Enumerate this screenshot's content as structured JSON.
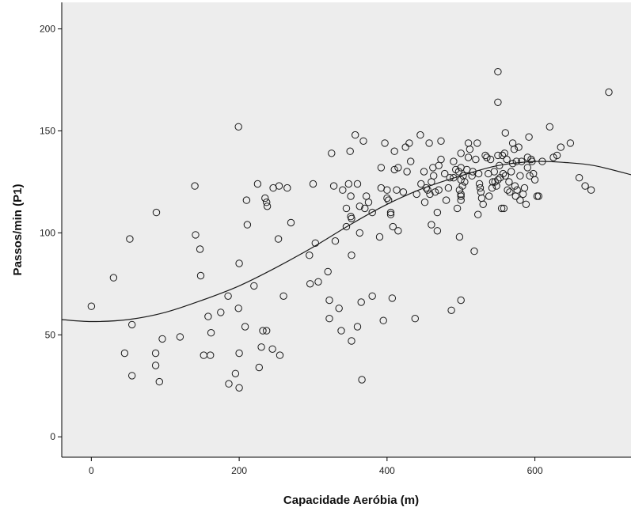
{
  "chart_data": {
    "type": "scatter",
    "xlabel": "Capacidade Aeróbia (m)",
    "ylabel": "Passos/min (P1)",
    "xlim": [
      -40,
      730
    ],
    "ylim": [
      -10,
      213
    ],
    "xticks": [
      0,
      200,
      400,
      600
    ],
    "yticks": [
      0,
      50,
      100,
      150,
      200
    ],
    "grid": false,
    "colors": {
      "background": "#ededed",
      "marker": "#1a1a1a",
      "fit_line": "#1a1a1a"
    },
    "fit": {
      "type": "polynomial-fit",
      "x": [
        -40,
        0,
        50,
        100,
        150,
        200,
        250,
        300,
        350,
        400,
        450,
        500,
        550,
        600,
        640,
        680,
        730
      ],
      "y": [
        57.5,
        56.5,
        57.5,
        61,
        67,
        74,
        83,
        93,
        104,
        114,
        122,
        128,
        133,
        135,
        134.5,
        133,
        128.5
      ]
    },
    "points": [
      [
        0,
        64
      ],
      [
        30,
        78
      ],
      [
        45,
        41
      ],
      [
        52,
        97
      ],
      [
        55,
        55
      ],
      [
        55,
        30
      ],
      [
        88,
        110
      ],
      [
        87,
        41
      ],
      [
        87,
        35
      ],
      [
        92,
        27
      ],
      [
        96,
        48
      ],
      [
        120,
        49
      ],
      [
        140,
        123
      ],
      [
        141,
        99
      ],
      [
        147,
        92
      ],
      [
        148,
        79
      ],
      [
        152,
        40
      ],
      [
        158,
        59
      ],
      [
        161,
        40
      ],
      [
        162,
        51
      ],
      [
        175,
        61
      ],
      [
        185,
        69
      ],
      [
        186,
        26
      ],
      [
        195,
        31
      ],
      [
        199,
        152
      ],
      [
        200,
        85
      ],
      [
        199,
        63
      ],
      [
        200,
        41
      ],
      [
        200,
        24
      ],
      [
        208,
        54
      ],
      [
        210,
        116
      ],
      [
        211,
        104
      ],
      [
        220,
        74
      ],
      [
        225,
        124
      ],
      [
        227,
        34
      ],
      [
        230,
        44
      ],
      [
        232,
        52
      ],
      [
        235,
        117
      ],
      [
        237,
        115
      ],
      [
        237,
        52
      ],
      [
        238,
        113
      ],
      [
        245,
        43
      ],
      [
        246,
        122
      ],
      [
        253,
        97
      ],
      [
        254,
        123
      ],
      [
        255,
        40
      ],
      [
        260,
        69
      ],
      [
        265,
        122
      ],
      [
        270,
        105
      ],
      [
        295,
        89
      ],
      [
        296,
        75
      ],
      [
        300,
        124
      ],
      [
        303,
        95
      ],
      [
        307,
        76
      ],
      [
        320,
        81
      ],
      [
        322,
        67
      ],
      [
        322,
        58
      ],
      [
        325,
        139
      ],
      [
        328,
        123
      ],
      [
        330,
        96
      ],
      [
        335,
        63
      ],
      [
        338,
        52
      ],
      [
        340,
        121
      ],
      [
        345,
        112
      ],
      [
        345,
        103
      ],
      [
        348,
        124
      ],
      [
        350,
        140
      ],
      [
        351,
        118
      ],
      [
        351,
        108
      ],
      [
        352,
        107
      ],
      [
        352,
        89
      ],
      [
        352,
        47
      ],
      [
        357,
        148
      ],
      [
        360,
        124
      ],
      [
        360,
        54
      ],
      [
        363,
        113
      ],
      [
        363,
        100
      ],
      [
        365,
        66
      ],
      [
        366,
        28
      ],
      [
        368,
        145
      ],
      [
        370,
        112
      ],
      [
        372,
        118
      ],
      [
        375,
        115
      ],
      [
        380,
        110
      ],
      [
        380,
        69
      ],
      [
        390,
        98
      ],
      [
        392,
        132
      ],
      [
        392,
        122
      ],
      [
        395,
        57
      ],
      [
        397,
        144
      ],
      [
        400,
        121
      ],
      [
        400,
        117
      ],
      [
        402,
        116
      ],
      [
        405,
        110
      ],
      [
        405,
        109
      ],
      [
        407,
        68
      ],
      [
        408,
        103
      ],
      [
        410,
        140
      ],
      [
        410,
        131
      ],
      [
        413,
        121
      ],
      [
        415,
        132
      ],
      [
        415,
        101
      ],
      [
        422,
        120
      ],
      [
        425,
        142
      ],
      [
        427,
        130
      ],
      [
        430,
        144
      ],
      [
        432,
        135
      ],
      [
        438,
        58
      ],
      [
        440,
        119
      ],
      [
        445,
        148
      ],
      [
        446,
        124
      ],
      [
        450,
        130
      ],
      [
        451,
        115
      ],
      [
        453,
        122
      ],
      [
        455,
        121
      ],
      [
        457,
        144
      ],
      [
        458,
        119
      ],
      [
        460,
        125
      ],
      [
        460,
        104
      ],
      [
        462,
        132
      ],
      [
        463,
        128
      ],
      [
        465,
        120
      ],
      [
        468,
        110
      ],
      [
        468,
        101
      ],
      [
        470,
        133
      ],
      [
        470,
        121
      ],
      [
        473,
        136
      ],
      [
        473,
        145
      ],
      [
        478,
        129
      ],
      [
        480,
        116
      ],
      [
        483,
        122
      ],
      [
        485,
        127
      ],
      [
        487,
        62
      ],
      [
        490,
        127
      ],
      [
        490,
        135
      ],
      [
        493,
        131
      ],
      [
        495,
        112
      ],
      [
        497,
        130
      ],
      [
        498,
        121
      ],
      [
        498,
        98
      ],
      [
        500,
        67
      ],
      [
        500,
        119
      ],
      [
        500,
        118
      ],
      [
        500,
        116
      ],
      [
        500,
        126
      ],
      [
        500,
        132
      ],
      [
        500,
        139
      ],
      [
        502,
        123
      ],
      [
        503,
        128
      ],
      [
        505,
        125
      ],
      [
        508,
        131
      ],
      [
        510,
        144
      ],
      [
        510,
        137
      ],
      [
        512,
        141
      ],
      [
        515,
        128
      ],
      [
        516,
        130
      ],
      [
        518,
        91
      ],
      [
        520,
        136
      ],
      [
        522,
        144
      ],
      [
        523,
        109
      ],
      [
        524,
        129
      ],
      [
        525,
        124
      ],
      [
        526,
        122
      ],
      [
        527,
        120
      ],
      [
        528,
        117
      ],
      [
        530,
        114
      ],
      [
        533,
        138
      ],
      [
        535,
        137
      ],
      [
        537,
        129
      ],
      [
        538,
        118
      ],
      [
        540,
        136
      ],
      [
        542,
        122
      ],
      [
        543,
        125
      ],
      [
        545,
        130
      ],
      [
        546,
        125
      ],
      [
        548,
        123
      ],
      [
        550,
        179
      ],
      [
        550,
        164
      ],
      [
        550,
        138
      ],
      [
        550,
        126
      ],
      [
        552,
        133
      ],
      [
        553,
        127
      ],
      [
        555,
        112
      ],
      [
        556,
        138
      ],
      [
        557,
        129
      ],
      [
        558,
        112
      ],
      [
        559,
        139
      ],
      [
        560,
        149
      ],
      [
        560,
        128
      ],
      [
        562,
        136
      ],
      [
        563,
        121
      ],
      [
        565,
        125
      ],
      [
        566,
        120
      ],
      [
        568,
        130
      ],
      [
        570,
        134
      ],
      [
        570,
        144
      ],
      [
        572,
        141
      ],
      [
        573,
        123
      ],
      [
        574,
        118
      ],
      [
        575,
        135
      ],
      [
        576,
        121
      ],
      [
        578,
        142
      ],
      [
        580,
        116
      ],
      [
        580,
        128
      ],
      [
        582,
        135
      ],
      [
        584,
        119
      ],
      [
        586,
        122
      ],
      [
        588,
        114
      ],
      [
        590,
        132
      ],
      [
        590,
        137
      ],
      [
        592,
        147
      ],
      [
        593,
        128
      ],
      [
        595,
        136
      ],
      [
        596,
        135
      ],
      [
        598,
        129
      ],
      [
        600,
        126
      ],
      [
        603,
        118
      ],
      [
        605,
        118
      ],
      [
        610,
        135
      ],
      [
        620,
        152
      ],
      [
        625,
        137
      ],
      [
        630,
        138
      ],
      [
        635,
        142
      ],
      [
        648,
        144
      ],
      [
        660,
        127
      ],
      [
        668,
        123
      ],
      [
        676,
        121
      ],
      [
        700,
        169
      ]
    ]
  }
}
